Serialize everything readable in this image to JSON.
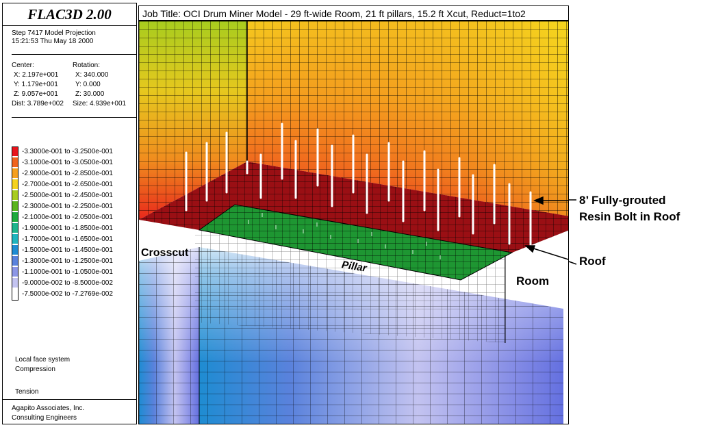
{
  "panel": {
    "title": "FLAC3D 2.00",
    "step_line": "Step 7417  Model Projection",
    "time_line": "15:21:53 Thu May 18 2000",
    "center_label": "Center:",
    "center_x": "X: 2.197e+001",
    "center_y": "Y: 1.179e+001",
    "center_z": "Z: 9.057e+001",
    "dist": "Dist: 3.789e+002",
    "rotation_label": "Rotation:",
    "rot_x": "X:  340.000",
    "rot_y": "Y:    0.000",
    "rot_z": "Z:  30.000",
    "size": "Size: 4.939e+001",
    "legend": [
      {
        "label": "-3.3000e-001 to -3.2500e-001",
        "color": "#e8141c"
      },
      {
        "label": "-3.1000e-001 to -3.0500e-001",
        "color": "#f0641e"
      },
      {
        "label": "-2.9000e-001 to -2.8500e-001",
        "color": "#f5a01e"
      },
      {
        "label": "-2.7000e-001 to -2.6500e-001",
        "color": "#f5d21e"
      },
      {
        "label": "-2.5000e-001 to -2.4500e-001",
        "color": "#a8cc1e"
      },
      {
        "label": "-2.3000e-001 to -2.2500e-001",
        "color": "#5ab41e"
      },
      {
        "label": "-2.1000e-001 to -2.0500e-001",
        "color": "#1eaa3c"
      },
      {
        "label": "-1.9000e-001 to -1.8500e-001",
        "color": "#1eb48c"
      },
      {
        "label": "-1.7000e-001 to -1.6500e-001",
        "color": "#1eb4be"
      },
      {
        "label": "-1.5000e-001 to -1.4500e-001",
        "color": "#1e8cd2"
      },
      {
        "label": "-1.3000e-001 to -1.2500e-001",
        "color": "#5a82dc"
      },
      {
        "label": "-1.1000e-001 to -1.0500e-001",
        "color": "#8c96e6"
      },
      {
        "label": "-9.0000e-002 to -8.5000e-002",
        "color": "#c3c3f0"
      },
      {
        "label": "-7.5000e-002 to -7.2769e-002",
        "color": "#ffffff"
      }
    ],
    "local_face_system": "Local face system",
    "compression": "Compression",
    "tension": "Tension",
    "company": "Agapito Associates, Inc.",
    "company_sub": "Consulting Engineers"
  },
  "job_title": "Job Title: OCI Drum Miner Model - 29 ft-wide Room, 21 ft pillars, 15.2 ft Xcut, Reduct=1to2",
  "scene": {
    "crosscut": "Crosscut",
    "pillar": "Pillar",
    "room": "Room"
  },
  "annotations": {
    "bolt_line1": "8’ Fully-grouted",
    "bolt_line2": "Resin Bolt in Roof",
    "roof": "Roof"
  }
}
